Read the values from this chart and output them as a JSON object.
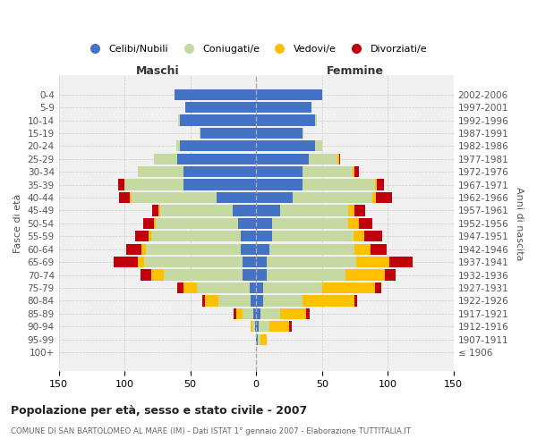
{
  "age_groups": [
    "100+",
    "95-99",
    "90-94",
    "85-89",
    "80-84",
    "75-79",
    "70-74",
    "65-69",
    "60-64",
    "55-59",
    "50-54",
    "45-49",
    "40-44",
    "35-39",
    "30-34",
    "25-29",
    "20-24",
    "15-19",
    "10-14",
    "5-9",
    "0-4"
  ],
  "birth_years": [
    "≤ 1906",
    "1907-1911",
    "1912-1916",
    "1917-1921",
    "1922-1926",
    "1927-1931",
    "1932-1936",
    "1937-1941",
    "1942-1946",
    "1947-1951",
    "1952-1956",
    "1957-1961",
    "1962-1966",
    "1967-1971",
    "1972-1976",
    "1977-1981",
    "1982-1986",
    "1987-1991",
    "1992-1996",
    "1997-2001",
    "2002-2006"
  ],
  "colors": {
    "celibi": "#4472c4",
    "coniugati": "#c5d9a0",
    "vedovi": "#ffc000",
    "divorziati": "#c0000b"
  },
  "m_celibi": [
    0,
    0,
    1,
    2,
    4,
    5,
    10,
    10,
    12,
    12,
    14,
    18,
    30,
    55,
    55,
    60,
    58,
    42,
    58,
    54,
    62
  ],
  "m_coniugati": [
    0,
    0,
    2,
    8,
    25,
    40,
    60,
    75,
    72,
    68,
    62,
    55,
    65,
    45,
    35,
    18,
    3,
    1,
    1,
    0,
    0
  ],
  "m_vedovi": [
    0,
    0,
    1,
    5,
    10,
    10,
    10,
    5,
    3,
    2,
    2,
    1,
    1,
    0,
    0,
    0,
    0,
    0,
    0,
    0,
    0
  ],
  "m_divorziati": [
    0,
    0,
    0,
    2,
    2,
    5,
    8,
    18,
    12,
    10,
    8,
    5,
    8,
    5,
    0,
    0,
    0,
    0,
    0,
    0,
    0
  ],
  "f_celibi": [
    0,
    1,
    2,
    3,
    5,
    5,
    8,
    8,
    10,
    12,
    12,
    18,
    28,
    35,
    35,
    40,
    45,
    35,
    45,
    42,
    50
  ],
  "f_coniugati": [
    0,
    2,
    8,
    15,
    30,
    45,
    60,
    68,
    65,
    62,
    58,
    52,
    60,
    55,
    38,
    22,
    5,
    1,
    1,
    0,
    0
  ],
  "f_vedovi": [
    0,
    5,
    15,
    20,
    40,
    40,
    30,
    25,
    12,
    8,
    8,
    5,
    3,
    2,
    2,
    1,
    0,
    0,
    0,
    0,
    0
  ],
  "f_divorziati": [
    0,
    0,
    2,
    3,
    2,
    5,
    8,
    18,
    12,
    14,
    10,
    8,
    12,
    5,
    3,
    1,
    0,
    0,
    0,
    0,
    0
  ],
  "title": "Popolazione per età, sesso e stato civile - 2007",
  "subtitle": "COMUNE DI SAN BARTOLOMEO AL MARE (IM) - Dati ISTAT 1° gennaio 2007 - Elaborazione TUTTITALIA.IT",
  "ylabel_left": "Fasce di età",
  "ylabel_right": "Anni di nascita",
  "xlabel_maschi": "Maschi",
  "xlabel_femmine": "Femmine",
  "xlim": 150,
  "legend_labels": [
    "Celibi/Nubili",
    "Coniugati/e",
    "Vedovi/e",
    "Divorziati/e"
  ],
  "background_color": "#ffffff",
  "grid_color": "#cccccc"
}
